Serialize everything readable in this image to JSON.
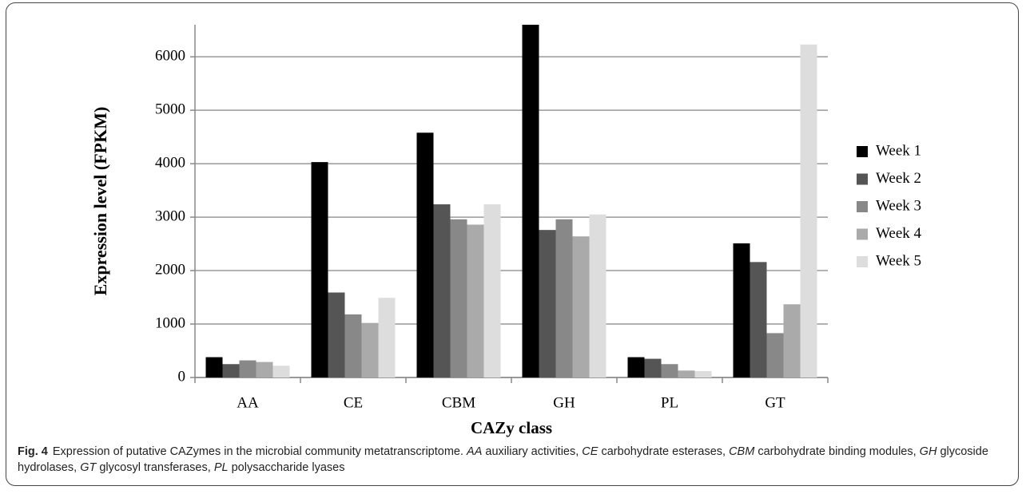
{
  "chart_data": {
    "type": "bar",
    "ylabel": "Expression level (FPKM)",
    "xlabel": "CAZy class",
    "categories": [
      "AA",
      "CE",
      "CBM",
      "GH",
      "PL",
      "GT"
    ],
    "series": [
      {
        "name": "Week 1",
        "color": "#000000",
        "values": [
          380,
          4030,
          4580,
          6600,
          380,
          2510
        ]
      },
      {
        "name": "Week 2",
        "color": "#555555",
        "values": [
          250,
          1590,
          3240,
          2760,
          350,
          2160
        ]
      },
      {
        "name": "Week 3",
        "color": "#888888",
        "values": [
          320,
          1180,
          2960,
          2960,
          250,
          830
        ]
      },
      {
        "name": "Week 4",
        "color": "#aaaaaa",
        "values": [
          290,
          1020,
          2860,
          2640,
          130,
          1370
        ]
      },
      {
        "name": "Week 5",
        "color": "#dddddd",
        "values": [
          220,
          1490,
          3240,
          3050,
          120,
          6230
        ]
      }
    ],
    "ylim": [
      0,
      6600
    ],
    "yticks": [
      0,
      1000,
      2000,
      3000,
      4000,
      5000,
      6000
    ],
    "grid": true,
    "legend": "right"
  },
  "caption": {
    "label": "Fig. 4",
    "text": "Expression of putative CAZymes in the microbial community metatranscriptome.",
    "items": [
      {
        "abbr": "AA",
        "desc": "auxiliary activities,"
      },
      {
        "abbr": "CE",
        "desc": "carbohydrate esterases,"
      },
      {
        "abbr": "CBM",
        "desc": "carbohydrate binding modules,"
      },
      {
        "abbr": "GH",
        "desc": "glycoside hydrolases,"
      },
      {
        "abbr": "GT",
        "desc": "glycosyl transferases,"
      },
      {
        "abbr": "PL",
        "desc": "polysaccharide lyases"
      }
    ]
  }
}
